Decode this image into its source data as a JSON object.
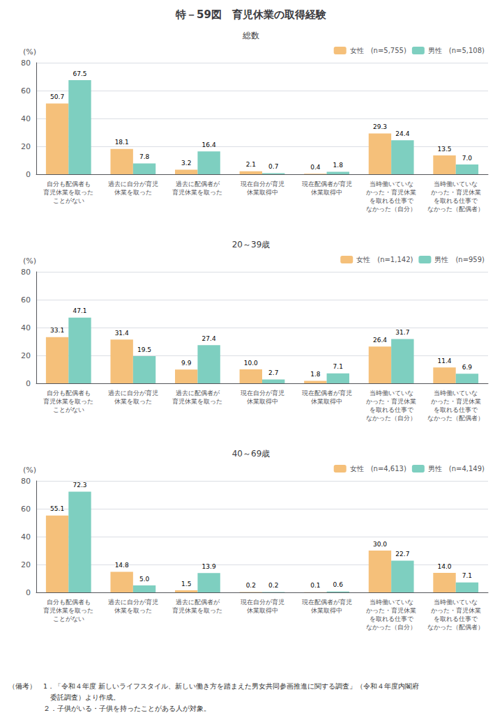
{
  "title": "特－59図　育児休業の取得経験",
  "annotations": [
    "（備考）　1．「令和４年度 新しいライフスタイル、新しい働き方を踏まえた男女共同参画推進に関する調査」（令和４年度内閣府",
    "　　　　　　委託調査）より作成。",
    "　　　　　２．子供がいる・子供を持ったことがある人が対象。"
  ],
  "chart_data": [
    {
      "type": "bar",
      "subtitle": "総数",
      "ylabel": "(%)",
      "categories": [
        "自分も配偶者も\n育児休業を取った\nことがない",
        "過去に自分が育児\n休業を取った",
        "過去に配偶者が\n育児休業を取った",
        "現在自分が育児\n休業取得中",
        "現在配偶者が育児\n休業取得中",
        "当時働いていな\nかった・育児休業\nを取れる仕事で\nなかった（自分）",
        "当時働いていな\nかった・育児休業\nを取れる仕事で\nなかった（配偶者）"
      ],
      "series": [
        {
          "name": "女性　(n=5,755)",
          "color": "#f5c07a",
          "values": [
            50.7,
            18.1,
            3.2,
            2.1,
            0.4,
            29.3,
            13.5
          ],
          "value_labels": [
            "50.7",
            "18.1",
            "3.2",
            "2.1",
            "0.4",
            "29.3",
            "13.5"
          ]
        },
        {
          "name": "男性　(n=5,108)",
          "color": "#7ecfc0",
          "values": [
            67.5,
            7.8,
            16.4,
            0.7,
            1.8,
            24.4,
            7.0
          ],
          "value_labels": [
            "67.5",
            "7.8",
            "16.4",
            "0.7",
            "1.8",
            "24.4",
            "7.0"
          ]
        }
      ],
      "ylim": [
        0,
        80
      ],
      "yticks": [
        0,
        20,
        40,
        60,
        80
      ],
      "grid": true,
      "legend": "upper right",
      "data_labels": true
    },
    {
      "type": "bar",
      "subtitle": "20～39歳",
      "ylabel": "(%)",
      "categories": [
        "自分も配偶者も\n育児休業を取った\nことがない",
        "過去に自分が育児\n休業を取った",
        "過去に配偶者が\n育児休業を取った",
        "現在自分が育児\n休業取得中",
        "現在配偶者が育児\n休業取得中",
        "当時働いていな\nかった・育児休業\nを取れる仕事で\nなかった（自分）",
        "当時働いていな\nかった・育児休業\nを取れる仕事で\nなかった（配偶者）"
      ],
      "series": [
        {
          "name": "女性　(n=1,142)",
          "color": "#f5c07a",
          "values": [
            33.1,
            31.4,
            9.9,
            10.0,
            1.8,
            26.4,
            11.4
          ],
          "value_labels": [
            "33.1",
            "31.4",
            "9.9",
            "10.0",
            "1.8",
            "26.4",
            "11.4"
          ]
        },
        {
          "name": "男性　(n=959)",
          "color": "#7ecfc0",
          "values": [
            47.1,
            19.5,
            27.4,
            2.7,
            7.1,
            31.7,
            6.9
          ],
          "value_labels": [
            "47.1",
            "19.5",
            "27.4",
            "2.7",
            "7.1",
            "31.7",
            "6.9"
          ]
        }
      ],
      "ylim": [
        0,
        80
      ],
      "yticks": [
        0,
        20,
        40,
        60,
        80
      ],
      "grid": true,
      "legend": "upper right",
      "data_labels": true
    },
    {
      "type": "bar",
      "subtitle": "40～69歳",
      "ylabel": "(%)",
      "categories": [
        "自分も配偶者も\n育児休業を取った\nことがない",
        "過去に自分が育児\n休業を取った",
        "過去に配偶者が\n育児休業を取った",
        "現在自分が育児\n休業取得中",
        "現在配偶者が育児\n休業取得中",
        "当時働いていな\nかった・育児休業\nを取れる仕事で\nなかった（自分）",
        "当時働いていな\nかった・育児休業\nを取れる仕事で\nなかった（配偶者）"
      ],
      "series": [
        {
          "name": "女性　(n=4,613)",
          "color": "#f5c07a",
          "values": [
            55.1,
            14.8,
            1.5,
            0.2,
            0.1,
            30.0,
            14.0
          ],
          "value_labels": [
            "55.1",
            "14.8",
            "1.5",
            "0.2",
            "0.1",
            "30.0",
            "14.0"
          ]
        },
        {
          "name": "男性　(n=4,149)",
          "color": "#7ecfc0",
          "values": [
            72.3,
            5.0,
            13.9,
            0.2,
            0.6,
            22.7,
            7.1
          ],
          "value_labels": [
            "72.3",
            "5.0",
            "13.9",
            "0.2",
            "0.6",
            "22.7",
            "7.1"
          ]
        }
      ],
      "ylim": [
        0,
        80
      ],
      "yticks": [
        0,
        20,
        40,
        60,
        80
      ],
      "grid": true,
      "legend": "upper right",
      "data_labels": true
    }
  ]
}
